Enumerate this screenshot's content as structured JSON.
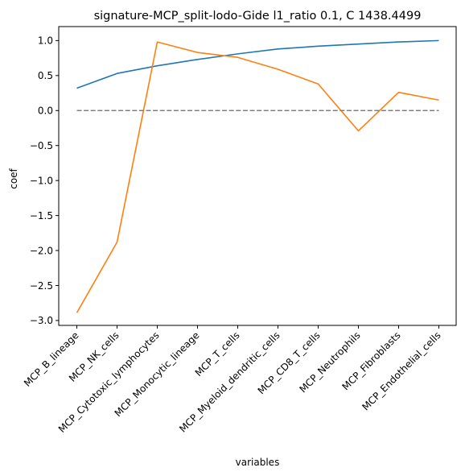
{
  "chart_data": {
    "type": "line",
    "title": "signature-MCP_split-lodo-Gide l1_ratio 0.1, C 1438.4499",
    "xlabel": "variables",
    "ylabel": "coef",
    "categories": [
      "MCP_B_lineage",
      "MCP_NK_cells",
      "MCP_Cytotoxic_lymphocytes",
      "MCP_Monocytic_lineage",
      "MCP_T_cells",
      "MCP_Myeloid_dendritic_cells",
      "MCP_CD8_T_cells",
      "MCP_Neutrophils",
      "MCP_Fibroblasts",
      "MCP_Endothelial_cells"
    ],
    "ylim": [
      -3.07,
      1.2
    ],
    "yticks": [
      -3.0,
      -2.5,
      -2.0,
      -1.5,
      -1.0,
      -0.5,
      0.0,
      0.5,
      1.0
    ],
    "yticklabels": [
      "−3.0",
      "−2.5",
      "−2.0",
      "−1.5",
      "−1.0",
      "−0.5",
      "0.0",
      "0.5",
      "1.0"
    ],
    "grid": false,
    "series": [
      {
        "color": "#1f77b4",
        "style": "solid",
        "values": [
          0.32,
          0.53,
          0.64,
          0.73,
          0.81,
          0.88,
          0.92,
          0.95,
          0.98,
          1.0
        ]
      },
      {
        "color": "#ff7f0e",
        "style": "solid",
        "values": [
          -2.89,
          -1.88,
          0.98,
          0.83,
          0.76,
          0.59,
          0.38,
          -0.29,
          0.26,
          0.15
        ]
      },
      {
        "color": "#808080",
        "style": "dashed",
        "values": [
          0,
          0,
          0,
          0,
          0,
          0,
          0,
          0,
          0,
          0
        ]
      }
    ]
  }
}
